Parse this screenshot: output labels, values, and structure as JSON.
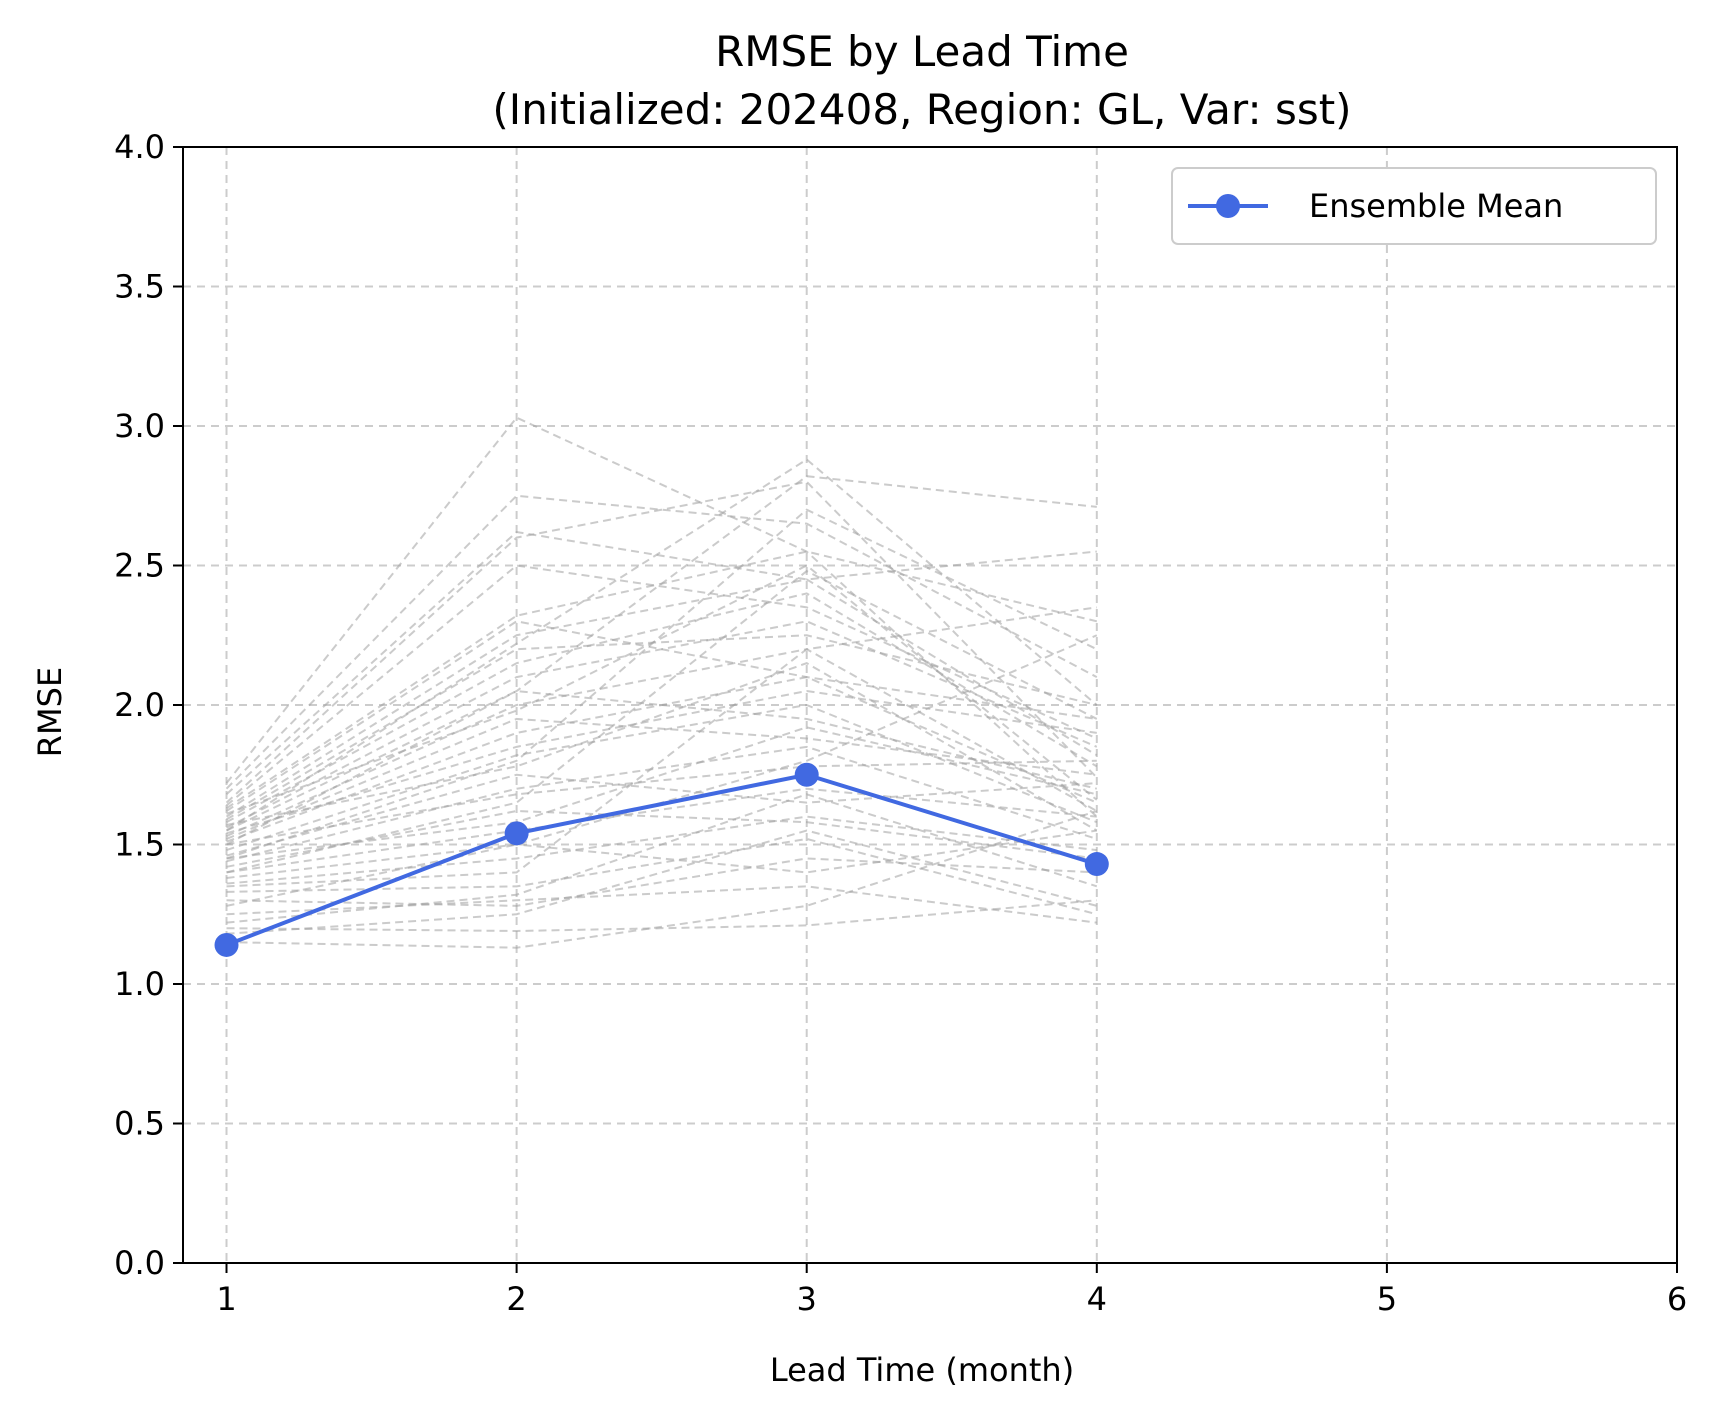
{
  "chart_data": {
    "type": "line",
    "title": "RMSE by Lead Time",
    "subtitle": "(Initialized: 202408, Region: GL, Var: sst)",
    "xlabel": "Lead Time (month)",
    "ylabel": "RMSE",
    "xlim": [
      0.85,
      6.0
    ],
    "ylim": [
      0.0,
      4.0
    ],
    "x_ticks": [
      1,
      2,
      3,
      4,
      5,
      6
    ],
    "x_tick_labels": [
      "1",
      "2",
      "3",
      "4",
      "5",
      "6"
    ],
    "y_ticks": [
      0.0,
      0.5,
      1.0,
      1.5,
      2.0,
      2.5,
      3.0,
      3.5,
      4.0
    ],
    "y_tick_labels": [
      "0.0",
      "0.5",
      "1.0",
      "1.5",
      "2.0",
      "2.5",
      "3.0",
      "3.5",
      "4.0"
    ],
    "grid": true,
    "legend_position": "top-right",
    "series": [
      {
        "name": "Ensemble Mean",
        "color": "#4169E1",
        "marker": "circle",
        "x": [
          1,
          2,
          3,
          4
        ],
        "values": [
          1.14,
          1.54,
          1.75,
          1.43
        ]
      }
    ],
    "members": {
      "color": "#A0A0A0",
      "style": "dashed",
      "x": [
        1,
        2,
        3,
        4
      ],
      "values": [
        [
          1.15,
          1.13,
          1.28,
          1.62
        ],
        [
          1.2,
          1.19,
          1.21,
          1.3
        ],
        [
          1.25,
          1.3,
          1.35,
          1.22
        ],
        [
          1.3,
          1.28,
          1.45,
          1.4
        ],
        [
          1.33,
          1.35,
          1.52,
          1.25
        ],
        [
          1.36,
          1.45,
          1.6,
          1.48
        ],
        [
          1.38,
          1.5,
          1.4,
          1.55
        ],
        [
          1.4,
          1.55,
          1.7,
          1.6
        ],
        [
          1.42,
          1.62,
          1.58,
          1.45
        ],
        [
          1.44,
          1.7,
          1.85,
          1.52
        ],
        [
          1.45,
          1.58,
          1.92,
          1.68
        ],
        [
          1.46,
          1.75,
          1.65,
          1.72
        ],
        [
          1.48,
          1.82,
          2.0,
          1.58
        ],
        [
          1.5,
          1.68,
          1.78,
          1.8
        ],
        [
          1.51,
          1.9,
          2.1,
          1.65
        ],
        [
          1.52,
          1.95,
          1.88,
          1.75
        ],
        [
          1.53,
          2.0,
          2.2,
          1.62
        ],
        [
          1.54,
          1.85,
          2.05,
          1.9
        ],
        [
          1.55,
          2.05,
          1.95,
          1.7
        ],
        [
          1.56,
          2.1,
          2.3,
          1.85
        ],
        [
          1.57,
          1.78,
          2.15,
          1.55
        ],
        [
          1.58,
          2.15,
          2.4,
          1.78
        ],
        [
          1.59,
          2.2,
          2.25,
          2.0
        ],
        [
          1.6,
          2.25,
          2.45,
          1.82
        ],
        [
          1.61,
          1.98,
          2.5,
          1.66
        ],
        [
          1.62,
          2.3,
          2.1,
          1.95
        ],
        [
          1.63,
          2.32,
          2.55,
          2.3
        ],
        [
          1.64,
          2.5,
          2.35,
          1.88
        ],
        [
          1.65,
          2.6,
          2.8,
          1.74
        ],
        [
          1.68,
          2.62,
          2.45,
          2.55
        ],
        [
          1.7,
          2.75,
          2.65,
          2.1
        ],
        [
          1.72,
          3.03,
          2.55,
          1.6
        ],
        [
          1.55,
          2.22,
          2.88,
          2.0
        ],
        [
          1.5,
          2.05,
          2.82,
          2.71
        ],
        [
          1.45,
          1.8,
          2.7,
          2.2
        ],
        [
          1.4,
          1.65,
          2.48,
          1.95
        ],
        [
          1.35,
          1.4,
          2.2,
          2.35
        ],
        [
          1.28,
          1.5,
          1.8,
          2.25
        ],
        [
          1.22,
          1.32,
          1.68,
          1.35
        ],
        [
          1.18,
          1.25,
          1.55,
          1.28
        ]
      ]
    }
  }
}
